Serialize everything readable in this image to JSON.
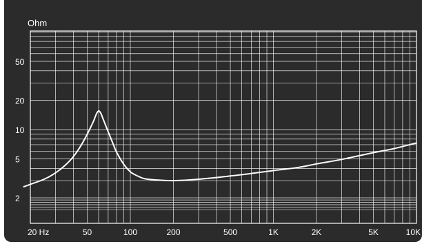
{
  "chart_data": {
    "type": "line",
    "unit_label": "Ohm",
    "x_scale": "log",
    "y_scale": "log",
    "xlim": [
      20,
      10000
    ],
    "ylim": [
      1.5,
      90
    ],
    "x_ticks": [
      {
        "value": 20,
        "label": "20 Hz"
      },
      {
        "value": 50,
        "label": "50"
      },
      {
        "value": 100,
        "label": "100"
      },
      {
        "value": 200,
        "label": "200"
      },
      {
        "value": 500,
        "label": "500"
      },
      {
        "value": 1000,
        "label": "1K"
      },
      {
        "value": 2000,
        "label": "2K"
      },
      {
        "value": 5000,
        "label": "5K"
      },
      {
        "value": 10000,
        "label": "10K"
      }
    ],
    "y_ticks": [
      {
        "value": 2,
        "label": "2"
      },
      {
        "value": 5,
        "label": "5"
      },
      {
        "value": 10,
        "label": "10"
      },
      {
        "value": 20,
        "label": "20"
      },
      {
        "value": 50,
        "label": "50"
      }
    ],
    "grid": true,
    "series": [
      {
        "values": [
          [
            18,
            2.6
          ],
          [
            20,
            2.75
          ],
          [
            25,
            3.1
          ],
          [
            30,
            3.6
          ],
          [
            35,
            4.3
          ],
          [
            40,
            5.3
          ],
          [
            45,
            6.8
          ],
          [
            50,
            9.0
          ],
          [
            55,
            12.0
          ],
          [
            58,
            14.5
          ],
          [
            60,
            15.5
          ],
          [
            62,
            14.8
          ],
          [
            65,
            12.5
          ],
          [
            70,
            9.5
          ],
          [
            75,
            7.4
          ],
          [
            80,
            5.9
          ],
          [
            90,
            4.4
          ],
          [
            100,
            3.7
          ],
          [
            110,
            3.4
          ],
          [
            125,
            3.15
          ],
          [
            150,
            3.05
          ],
          [
            200,
            3.0
          ],
          [
            300,
            3.1
          ],
          [
            500,
            3.35
          ],
          [
            700,
            3.55
          ],
          [
            1000,
            3.8
          ],
          [
            1500,
            4.1
          ],
          [
            2000,
            4.45
          ],
          [
            3000,
            4.95
          ],
          [
            5000,
            5.8
          ],
          [
            7000,
            6.4
          ],
          [
            10000,
            7.3
          ]
        ]
      }
    ]
  }
}
